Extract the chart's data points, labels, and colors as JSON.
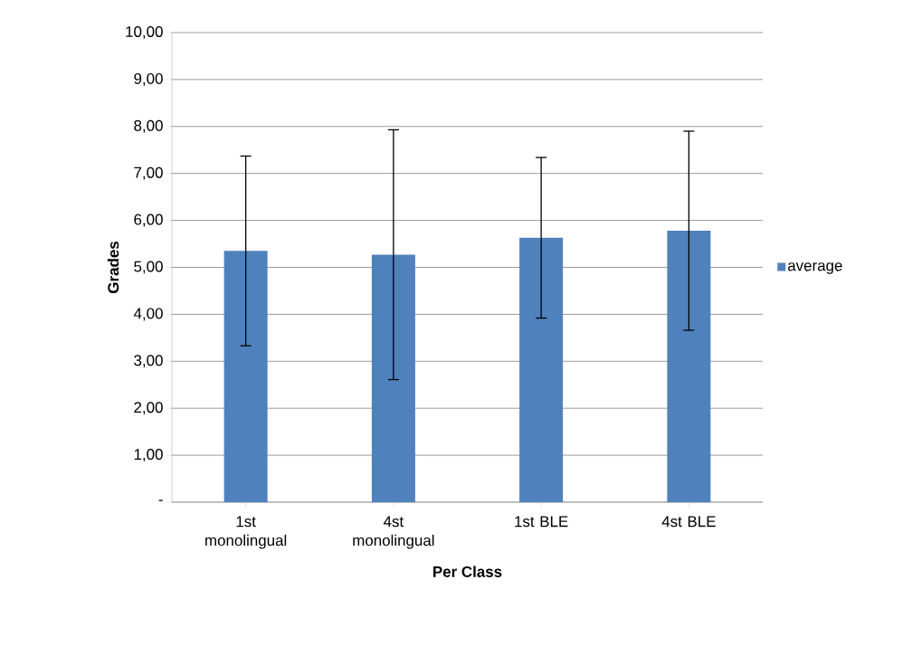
{
  "chart_data": {
    "type": "bar",
    "xlabel": "Per Class",
    "ylabel": "Grades",
    "categories": [
      "1st monolingual",
      "4st monolingual",
      "1st BLE",
      "4st BLE"
    ],
    "series": [
      {
        "name": "average",
        "color": "#4f81bd",
        "values": [
          5.35,
          5.27,
          5.63,
          5.78
        ],
        "errors": [
          2.02,
          2.66,
          1.71,
          2.12
        ]
      }
    ],
    "ylim": [
      0,
      10
    ],
    "yticks": [
      {
        "value": 0,
        "label": "-"
      },
      {
        "value": 1,
        "label": "1,00"
      },
      {
        "value": 2,
        "label": "2,00"
      },
      {
        "value": 3,
        "label": "3,00"
      },
      {
        "value": 4,
        "label": "4,00"
      },
      {
        "value": 5,
        "label": "5,00"
      },
      {
        "value": 6,
        "label": "6,00"
      },
      {
        "value": 7,
        "label": "7,00"
      },
      {
        "value": 8,
        "label": "8,00"
      },
      {
        "value": 9,
        "label": "9,00"
      },
      {
        "value": 10,
        "label": "10,00"
      }
    ],
    "grid": "y",
    "legend": "right"
  }
}
